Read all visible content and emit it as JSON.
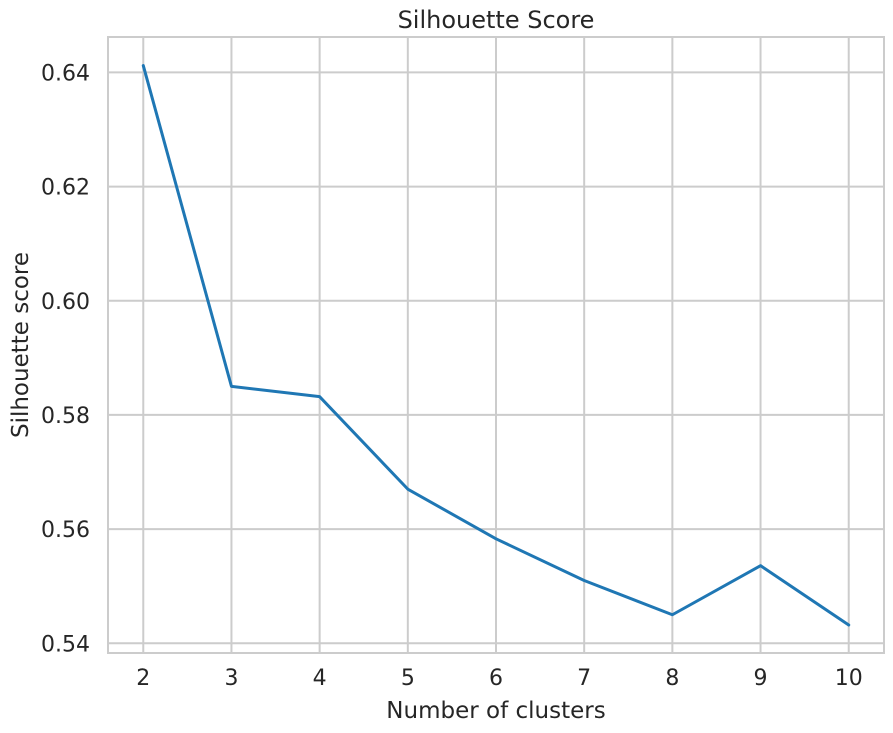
{
  "chart_data": {
    "type": "line",
    "title": "Silhouette Score",
    "xlabel": "Number of clusters",
    "ylabel": "Silhouette score",
    "x": [
      2,
      3,
      4,
      5,
      6,
      7,
      8,
      9,
      10
    ],
    "series": [
      {
        "values": [
          0.6412,
          0.585,
          0.5832,
          0.567,
          0.5583,
          0.551,
          0.545,
          0.5536,
          0.5432
        ],
        "color": "#1f77b4"
      }
    ],
    "xlim": [
      1.6,
      10.4
    ],
    "ylim": [
      0.5383,
      0.6462
    ],
    "x_ticks": [
      "2",
      "3",
      "4",
      "5",
      "6",
      "7",
      "8",
      "9",
      "10"
    ],
    "y_ticks": [
      "0.54",
      "0.56",
      "0.58",
      "0.60",
      "0.62",
      "0.64"
    ],
    "grid": true,
    "legend": "none"
  }
}
